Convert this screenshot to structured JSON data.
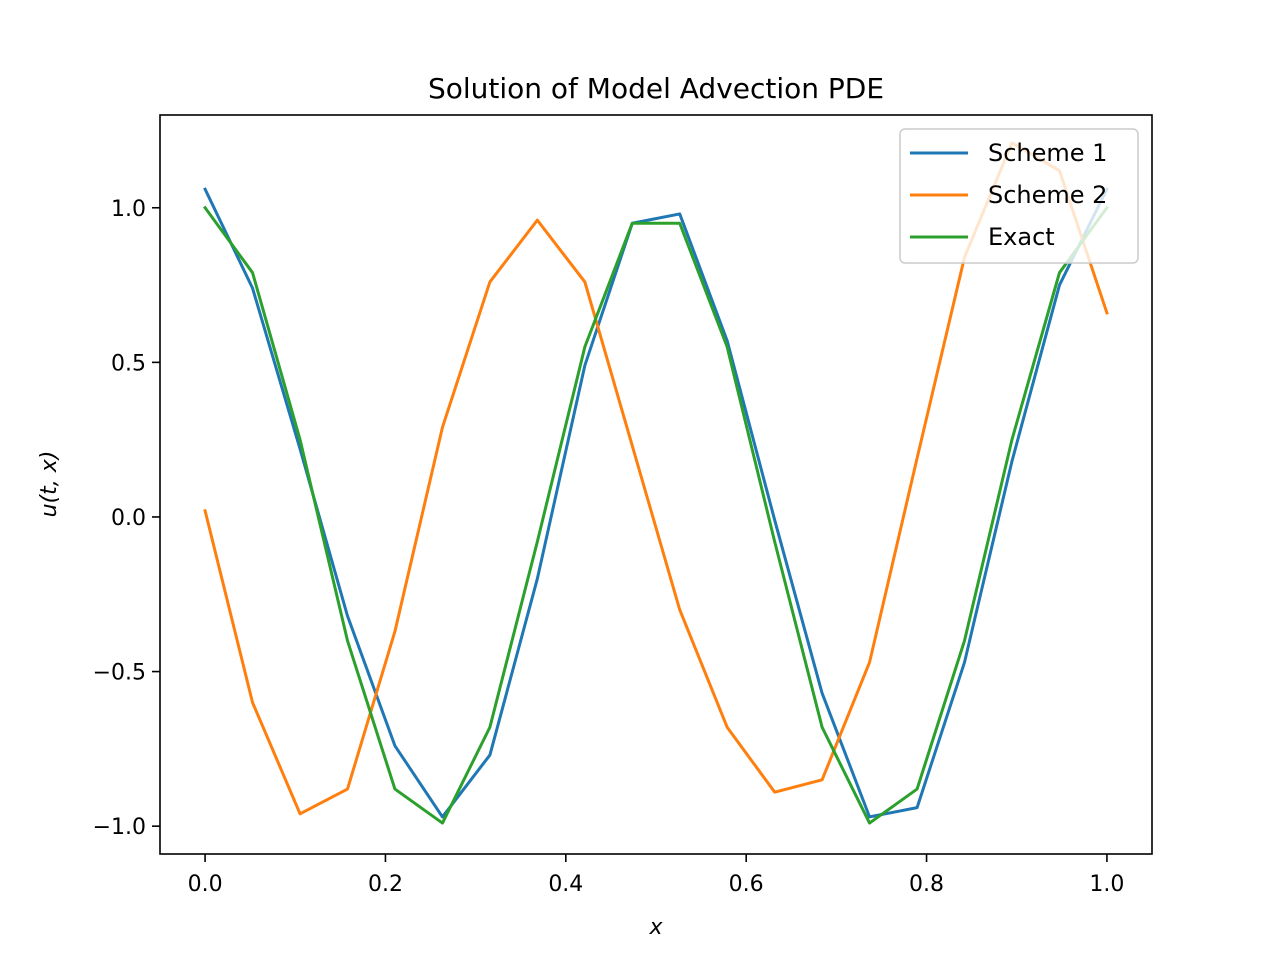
{
  "chart_data": {
    "type": "line",
    "title": "Solution of Model Advection PDE",
    "xlabel": "x",
    "ylabel": "u(t, x)",
    "xlim": [
      -0.05,
      1.05
    ],
    "ylim": [
      -1.09,
      1.3
    ],
    "xticks": [
      0.0,
      0.2,
      0.4,
      0.6,
      0.8,
      1.0
    ],
    "xtick_labels": [
      "0.0",
      "0.2",
      "0.4",
      "0.6",
      "0.8",
      "1.0"
    ],
    "yticks": [
      -1.0,
      -0.5,
      0.0,
      0.5,
      1.0
    ],
    "ytick_labels": [
      "−1.0",
      "−0.5",
      "0.0",
      "0.5",
      "1.0"
    ],
    "grid": false,
    "legend": "top-right",
    "x": [
      0.0,
      0.0526,
      0.1053,
      0.1579,
      0.2105,
      0.2632,
      0.3158,
      0.3684,
      0.4211,
      0.4737,
      0.5263,
      0.5789,
      0.6316,
      0.6842,
      0.7368,
      0.7895,
      0.8421,
      0.8947,
      0.9474,
      1.0
    ],
    "series": [
      {
        "name": "Scheme 1",
        "color": "#1f77b4",
        "values": [
          1.06,
          0.74,
          0.22,
          -0.32,
          -0.74,
          -0.97,
          -0.77,
          -0.2,
          0.49,
          0.95,
          0.98,
          0.57,
          -0.01,
          -0.57,
          -0.97,
          -0.94,
          -0.47,
          0.18,
          0.75,
          1.06
        ]
      },
      {
        "name": "Scheme 2",
        "color": "#ff7f0e",
        "values": [
          0.02,
          -0.6,
          -0.96,
          -0.88,
          -0.37,
          0.29,
          0.76,
          0.96,
          0.76,
          0.23,
          -0.3,
          -0.68,
          -0.89,
          -0.85,
          -0.47,
          0.19,
          0.84,
          1.21,
          1.12,
          0.66
        ]
      },
      {
        "name": "Exact",
        "color": "#2ca02c",
        "values": [
          1.0,
          0.79,
          0.25,
          -0.4,
          -0.88,
          -0.99,
          -0.68,
          -0.08,
          0.55,
          0.95,
          0.95,
          0.55,
          -0.08,
          -0.68,
          -0.99,
          -0.88,
          -0.4,
          0.25,
          0.79,
          1.0
        ]
      }
    ]
  }
}
